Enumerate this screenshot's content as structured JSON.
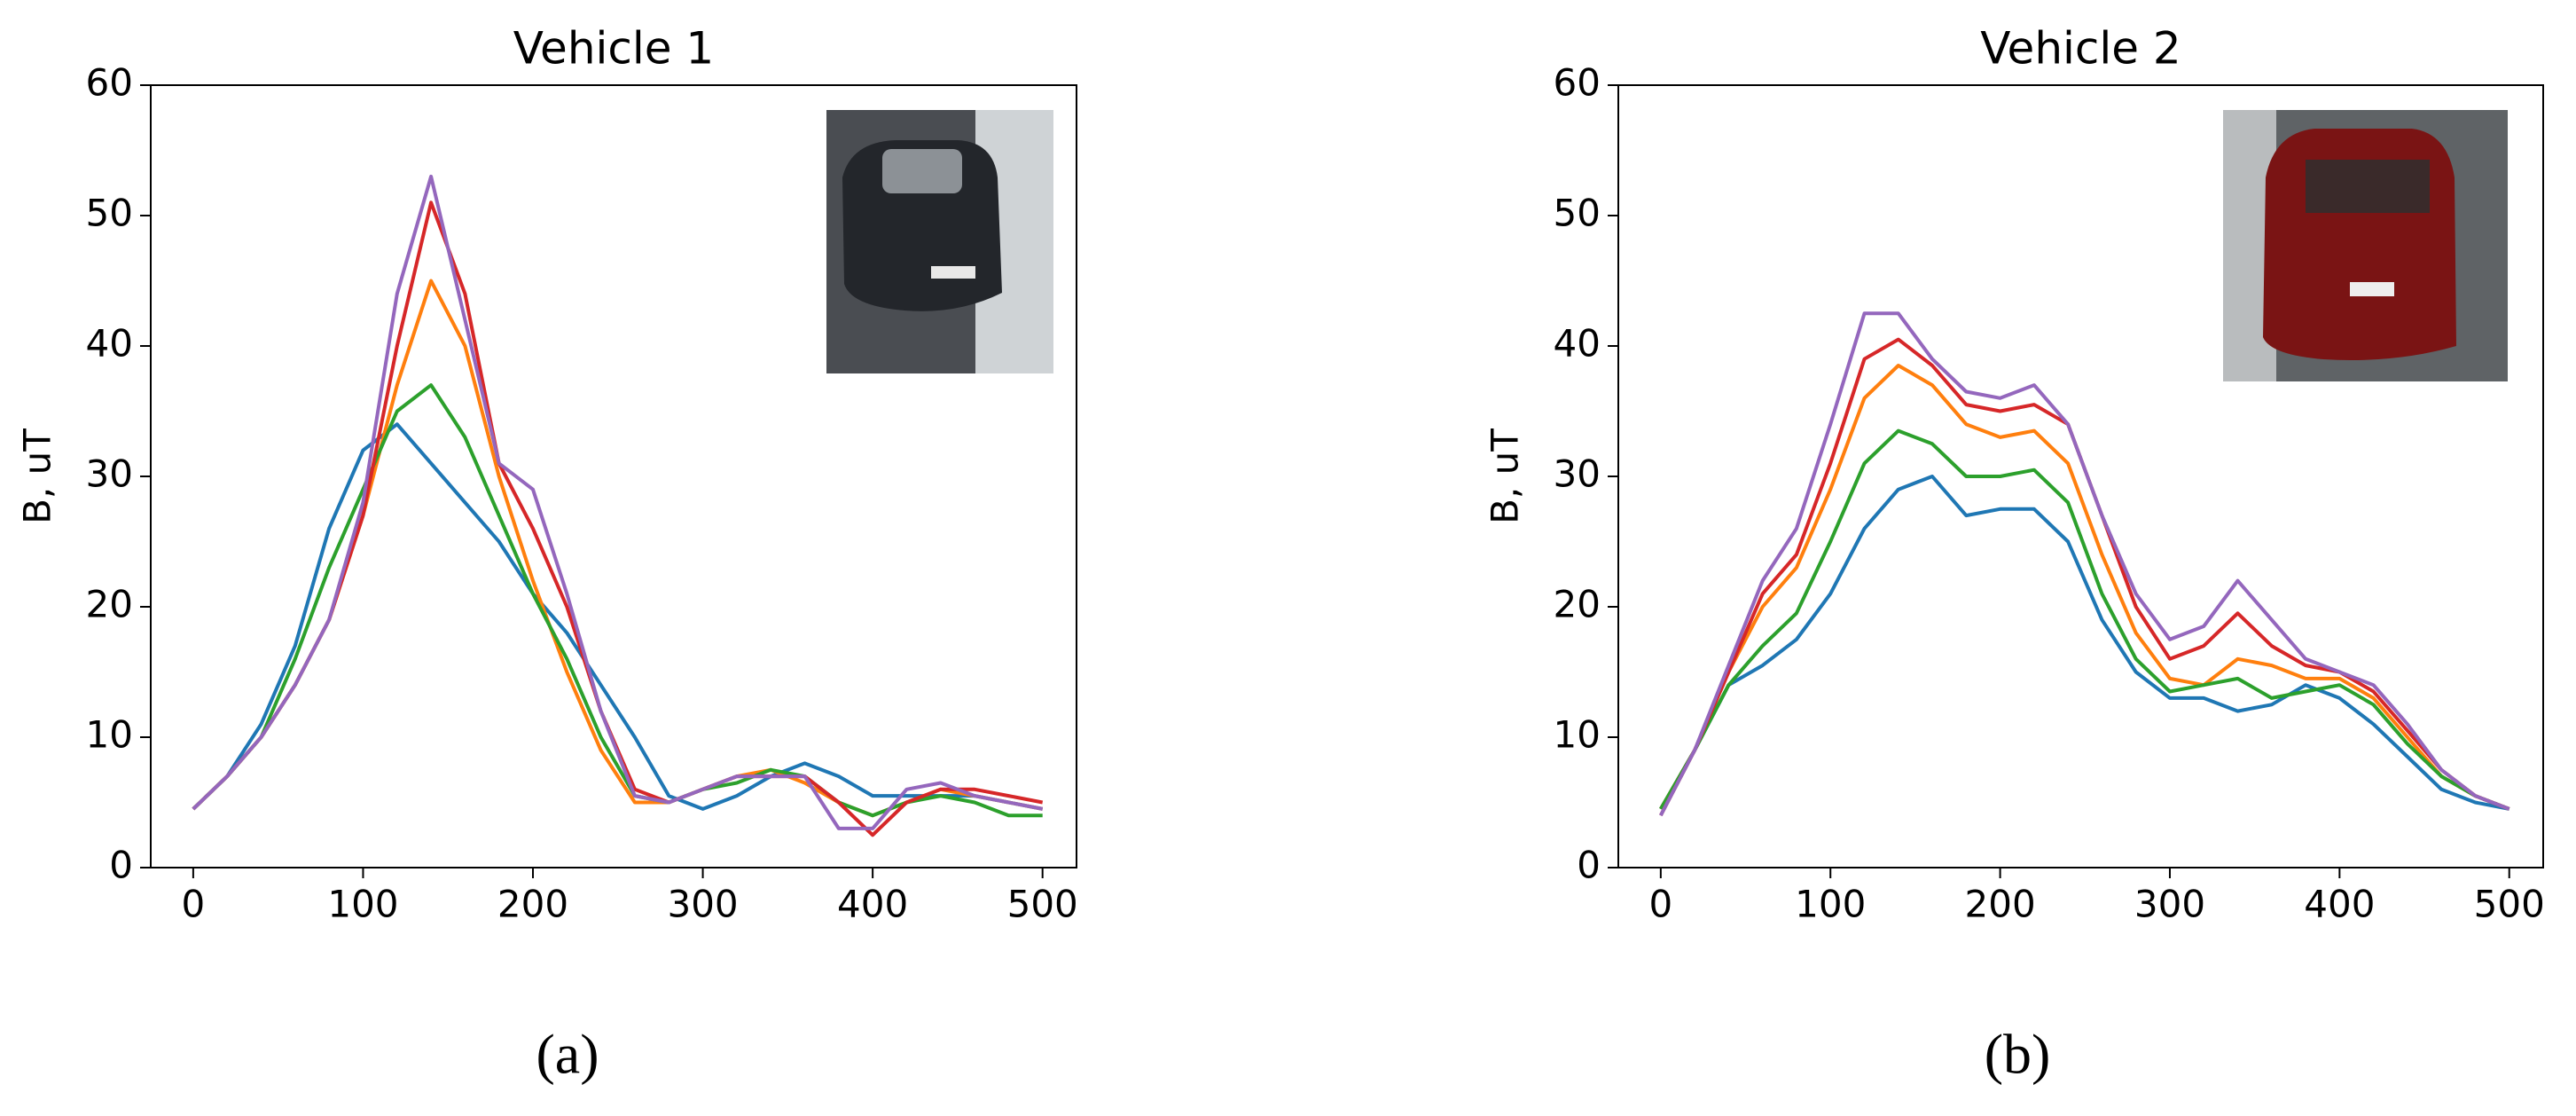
{
  "chart_data": [
    {
      "type": "line",
      "title": "Vehicle 1",
      "ylabel": "B, uT",
      "caption": "(a)",
      "x": [
        0,
        20,
        40,
        60,
        80,
        100,
        120,
        140,
        160,
        180,
        200,
        220,
        240,
        260,
        280,
        300,
        320,
        340,
        360,
        380,
        400,
        420,
        440,
        460,
        480,
        500
      ],
      "xlim": [
        -25,
        520
      ],
      "xticks": [
        0,
        100,
        200,
        300,
        400,
        500
      ],
      "ylim": [
        0,
        60
      ],
      "yticks": [
        0,
        10,
        20,
        30,
        40,
        50,
        60
      ],
      "grid": false,
      "series": [
        {
          "color": "#1f77b4",
          "values": [
            4.5,
            7,
            11,
            17,
            26,
            32,
            34,
            31,
            28,
            25,
            21,
            18,
            14,
            10,
            5.5,
            4.5,
            5.5,
            7,
            8,
            7,
            5.5,
            5.5,
            5.5,
            5.5,
            5,
            4.5
          ]
        },
        {
          "color": "#ff7f0e",
          "values": [
            4.5,
            7,
            10,
            14,
            19,
            27,
            37,
            45,
            40,
            30,
            22,
            15,
            9,
            5,
            5,
            6,
            7,
            7.5,
            6.5,
            5,
            4,
            5,
            6,
            5.5,
            5,
            4.5
          ]
        },
        {
          "color": "#2ca02c",
          "values": [
            4.5,
            7,
            10,
            16,
            23,
            29,
            35,
            37,
            33,
            27,
            21,
            16,
            10,
            5.5,
            5,
            6,
            6.5,
            7.5,
            7,
            5,
            4,
            5,
            5.5,
            5,
            4,
            4
          ]
        },
        {
          "color": "#d62728",
          "values": [
            4.5,
            7,
            10,
            14,
            19,
            27,
            40,
            51,
            44,
            31,
            26,
            20,
            12,
            6,
            5,
            6,
            7,
            7,
            7,
            5,
            2.5,
            5,
            6,
            6,
            5.5,
            5
          ]
        },
        {
          "color": "#9467bd",
          "values": [
            4.5,
            7,
            10,
            14,
            19,
            28,
            44,
            53,
            42,
            31,
            29,
            21,
            12,
            5.5,
            5,
            6,
            7,
            7,
            7,
            3,
            3,
            6,
            6.5,
            5.5,
            5,
            4.5
          ]
        }
      ]
    },
    {
      "type": "line",
      "title": "Vehicle 2",
      "ylabel": "B, uT",
      "caption": "(b)",
      "x": [
        0,
        20,
        40,
        60,
        80,
        100,
        120,
        140,
        160,
        180,
        200,
        220,
        240,
        260,
        280,
        300,
        320,
        340,
        360,
        380,
        400,
        420,
        440,
        460,
        480,
        500
      ],
      "xlim": [
        -25,
        520
      ],
      "xticks": [
        0,
        100,
        200,
        300,
        400,
        500
      ],
      "ylim": [
        0,
        60
      ],
      "yticks": [
        0,
        10,
        20,
        30,
        40,
        50,
        60
      ],
      "grid": false,
      "series": [
        {
          "color": "#1f77b4",
          "values": [
            4.5,
            9,
            14,
            15.5,
            17.5,
            21,
            26,
            29,
            30,
            27,
            27.5,
            27.5,
            25,
            19,
            15,
            13,
            13,
            12,
            12.5,
            14,
            13,
            11,
            8.5,
            6,
            5,
            4.5
          ]
        },
        {
          "color": "#ff7f0e",
          "values": [
            4.5,
            9,
            15,
            20,
            23,
            29,
            36,
            38.5,
            37,
            34,
            33,
            33.5,
            31,
            24,
            18,
            14.5,
            14,
            16,
            15.5,
            14.5,
            14.5,
            13,
            10,
            7,
            5.5,
            4.5
          ]
        },
        {
          "color": "#2ca02c",
          "values": [
            4.5,
            9,
            14,
            17,
            19.5,
            25,
            31,
            33.5,
            32.5,
            30,
            30,
            30.5,
            28,
            21,
            16,
            13.5,
            14,
            14.5,
            13,
            13.5,
            14,
            12.5,
            9.5,
            7,
            5.5,
            4.5
          ]
        },
        {
          "color": "#d62728",
          "values": [
            4,
            9,
            15,
            21,
            24,
            31,
            39,
            40.5,
            38.5,
            35.5,
            35,
            35.5,
            34,
            27,
            20,
            16,
            17,
            19.5,
            17,
            15.5,
            15,
            13.5,
            10.5,
            7.5,
            5.5,
            4.5
          ]
        },
        {
          "color": "#9467bd",
          "values": [
            4,
            9,
            15.5,
            22,
            26,
            34,
            42.5,
            42.5,
            39,
            36.5,
            36,
            37,
            34,
            27,
            21,
            17.5,
            18.5,
            22,
            19,
            16,
            15,
            14,
            11,
            7.5,
            5.5,
            4.5
          ]
        }
      ]
    }
  ]
}
